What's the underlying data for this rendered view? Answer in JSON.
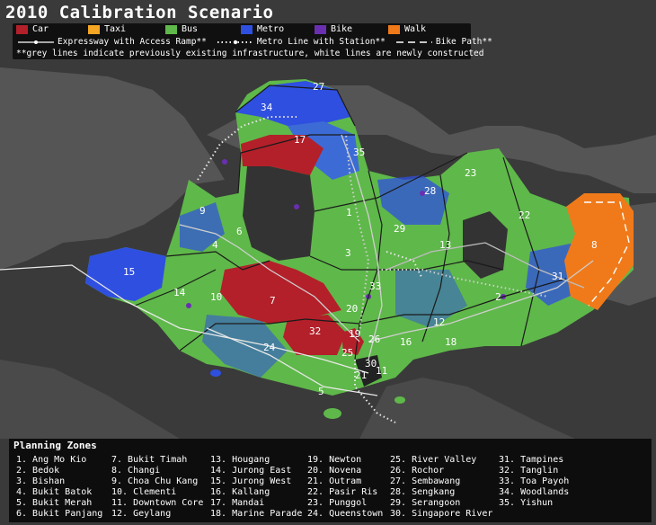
{
  "title": "2010 Calibration Scenario",
  "modes": [
    {
      "label": "Car",
      "color": "#b3202a"
    },
    {
      "label": "Taxi",
      "color": "#f5a623"
    },
    {
      "label": "Bus",
      "color": "#5fb84a"
    },
    {
      "label": "Metro",
      "color": "#2f4fe0"
    },
    {
      "label": "Bike",
      "color": "#6a2fb0"
    },
    {
      "label": "Walk",
      "color": "#f07a1a"
    }
  ],
  "infrastructure": {
    "expressway": "Expressway with Access Ramp**",
    "metro": "Metro Line with Station**",
    "bike": "Bike Path**",
    "note": "**grey lines indicate previously existing infrastructure, white lines are newly constructed"
  },
  "zones_title": "Planning Zones",
  "zones": [
    "1. Ang Mo Kio",
    "2. Bedok",
    "3. Bishan",
    "4. Bukit Batok",
    "5. Bukit Merah",
    "6. Bukit Panjang",
    "7. Bukit Timah",
    "8. Changi",
    "9. Choa Chu Kang",
    "10. Clementi",
    "11. Downtown Core",
    "12. Geylang",
    "13. Hougang",
    "14. Jurong East",
    "15. Jurong West",
    "16. Kallang",
    "17. Mandai",
    "18. Marine Parade",
    "19. Newton",
    "20. Novena",
    "21. Outram",
    "22. Pasir Ris",
    "23. Punggol",
    "24. Queenstown",
    "25. River Valley",
    "26. Rochor",
    "27. Sembawang",
    "28. Sengkang",
    "29. Serangoon",
    "30. Singapore River",
    "31. Tampines",
    "32. Tanglin",
    "33. Toa Payoh",
    "34. Woodlands",
    "35. Yishun"
  ],
  "map_labels": [
    "27",
    "34",
    "17",
    "35",
    "23",
    "28",
    "1",
    "9",
    "29",
    "22",
    "6",
    "4",
    "13",
    "8",
    "3",
    "15",
    "33",
    "31",
    "14",
    "10",
    "7",
    "2",
    "20",
    "12",
    "32",
    "19",
    "26",
    "16",
    "18",
    "24",
    "25",
    "30",
    "21",
    "11",
    "5"
  ]
}
